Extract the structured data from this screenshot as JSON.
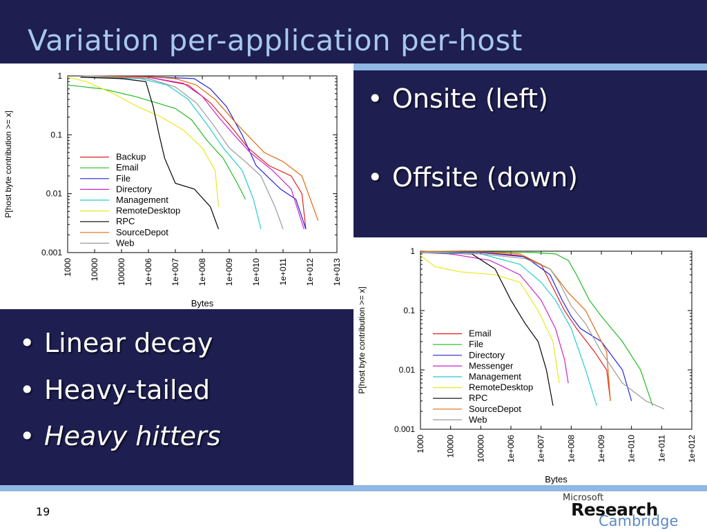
{
  "slide": {
    "title": "Variation per-application per-host",
    "page_number": "19",
    "bullets_right": [
      {
        "text": "Onsite (left)",
        "italic": false
      },
      {
        "text": "Offsite (down)",
        "italic": false
      }
    ],
    "bullets_left": [
      {
        "text": "Linear decay",
        "italic": false
      },
      {
        "text": "Heavy-tailed",
        "italic": false
      },
      {
        "text": "Heavy hitters",
        "italic": true
      }
    ],
    "logo": {
      "line1": "Microsoft",
      "line2": "Research",
      "line3": "Cambridge"
    }
  },
  "chart_data": [
    {
      "type": "line",
      "id": "onsite",
      "xlabel": "Bytes",
      "ylabel": "P[host byte contribution >= x]",
      "xscale": "log",
      "yscale": "log",
      "xlim": [
        1000,
        10000000000000.0
      ],
      "ylim": [
        0.001,
        1
      ],
      "xticks": [
        "1000",
        "10000",
        "100000",
        "1e+006",
        "1e+007",
        "1e+008",
        "1e+009",
        "1e+010",
        "1e+011",
        "1e+012",
        "1e+013"
      ],
      "yticks": [
        "1",
        "0.1",
        "0.01",
        "0.001"
      ],
      "legend": "bottom-left",
      "grid": false,
      "series": [
        {
          "name": "Backup",
          "color": "#e02020",
          "x": [
            3000,
            1000000.0,
            30000000.0,
            200000000.0,
            1000000000.0,
            5000000000.0,
            30000000000.0,
            200000000000.0,
            500000000000.0,
            700000000000.0
          ],
          "y": [
            1,
            0.95,
            0.7,
            0.35,
            0.15,
            0.06,
            0.03,
            0.02,
            0.01,
            0.0025
          ]
        },
        {
          "name": "Email",
          "color": "#22bb22",
          "x": [
            1000,
            20000,
            300000.0,
            2000000.0,
            10000000.0,
            40000000.0,
            150000000.0,
            600000000.0,
            2000000000.0,
            4000000000.0
          ],
          "y": [
            0.7,
            0.6,
            0.45,
            0.35,
            0.28,
            0.18,
            0.08,
            0.04,
            0.015,
            0.008
          ]
        },
        {
          "name": "File",
          "color": "#2222dd",
          "x": [
            3000,
            1000000.0,
            50000000.0,
            200000000.0,
            800000000.0,
            3000000000.0,
            10000000000.0,
            80000000000.0,
            300000000000.0,
            700000000000.0
          ],
          "y": [
            1,
            0.97,
            0.9,
            0.6,
            0.3,
            0.1,
            0.03,
            0.012,
            0.008,
            0.0025
          ]
        },
        {
          "name": "Directory",
          "color": "#cc22cc",
          "x": [
            3000,
            1000000.0,
            20000000.0,
            100000000.0,
            400000000.0,
            1500000000.0,
            6000000000.0,
            40000000000.0,
            200000000000.0,
            600000000000.0
          ],
          "y": [
            1,
            0.95,
            0.75,
            0.45,
            0.2,
            0.1,
            0.05,
            0.025,
            0.012,
            0.0025
          ]
        },
        {
          "name": "Management",
          "color": "#22cccc",
          "x": [
            3000,
            500000.0,
            5000000.0,
            30000000.0,
            150000000.0,
            600000000.0,
            3000000000.0,
            8000000000.0,
            15000000000.0
          ],
          "y": [
            0.95,
            0.9,
            0.7,
            0.4,
            0.15,
            0.06,
            0.025,
            0.008,
            0.0025
          ]
        },
        {
          "name": "RemoteDesktop",
          "color": "#e8e820",
          "x": [
            1000,
            5000,
            50000,
            400000.0,
            3000000.0,
            20000000.0,
            100000000.0,
            300000000.0,
            400000000.0
          ],
          "y": [
            0.95,
            0.8,
            0.5,
            0.3,
            0.2,
            0.12,
            0.06,
            0.025,
            0.006
          ]
        },
        {
          "name": "RPC",
          "color": "#000000",
          "x": [
            3000,
            100000.0,
            800000.0,
            1500000.0,
            2500000.0,
            4000000.0,
            10000000.0,
            50000000.0,
            200000000.0,
            400000000.0
          ],
          "y": [
            0.95,
            0.9,
            0.8,
            0.3,
            0.1,
            0.04,
            0.015,
            0.012,
            0.006,
            0.0025
          ]
        },
        {
          "name": "SourceDepot",
          "color": "#e06a10",
          "x": [
            3000,
            1000000.0,
            10000000.0,
            60000000.0,
            300000000.0,
            2000000000.0,
            20000000000.0,
            100000000000.0,
            500000000000.0,
            2000000000000.0
          ],
          "y": [
            1,
            0.97,
            0.9,
            0.7,
            0.4,
            0.15,
            0.05,
            0.035,
            0.02,
            0.0035
          ]
        },
        {
          "name": "Web",
          "color": "#999999",
          "x": [
            3000,
            1000000.0,
            10000000.0,
            60000000.0,
            250000000.0,
            1000000000.0,
            4000000000.0,
            15000000000.0,
            50000000000.0,
            100000000000.0
          ],
          "y": [
            1,
            0.9,
            0.65,
            0.35,
            0.15,
            0.06,
            0.035,
            0.02,
            0.006,
            0.0025
          ]
        }
      ]
    },
    {
      "type": "line",
      "id": "offsite",
      "xlabel": "Bytes",
      "ylabel": "P[host byte contribution >= x]",
      "xscale": "log",
      "yscale": "log",
      "xlim": [
        1000,
        1000000000000.0
      ],
      "ylim": [
        0.001,
        1
      ],
      "xticks": [
        "1000",
        "10000",
        "100000",
        "1e+006",
        "1e+007",
        "1e+008",
        "1e+009",
        "1e+010",
        "1e+011",
        "1e+012"
      ],
      "yticks": [
        "1",
        "0.1",
        "0.01",
        "0.001"
      ],
      "legend": "bottom-left",
      "grid": false,
      "series": [
        {
          "name": "Email",
          "color": "#e02020",
          "x": [
            1000,
            100000.0,
            2000000.0,
            10000000.0,
            30000000.0,
            60000000.0,
            150000000.0,
            600000000.0,
            1500000000.0,
            2000000000.0
          ],
          "y": [
            1,
            0.95,
            0.85,
            0.6,
            0.2,
            0.1,
            0.05,
            0.02,
            0.01,
            0.003
          ]
        },
        {
          "name": "File",
          "color": "#22bb22",
          "x": [
            1000,
            100000.0,
            5000000.0,
            30000000.0,
            80000000.0,
            150000000.0,
            400000000.0,
            1000000000.0,
            5000000000.0,
            20000000000.0,
            50000000000.0
          ],
          "y": [
            1,
            0.98,
            0.95,
            0.9,
            0.7,
            0.4,
            0.15,
            0.08,
            0.03,
            0.01,
            0.0025
          ]
        },
        {
          "name": "Directory",
          "color": "#2222dd",
          "x": [
            1000,
            100000.0,
            3000000.0,
            20000000.0,
            50000000.0,
            100000000.0,
            200000000.0,
            1000000000.0,
            5000000000.0,
            10000000000.0
          ],
          "y": [
            1,
            0.95,
            0.8,
            0.4,
            0.15,
            0.08,
            0.05,
            0.03,
            0.01,
            0.003
          ]
        },
        {
          "name": "Messenger",
          "color": "#cc22cc",
          "x": [
            1000,
            10000.0,
            200000.0,
            2000000.0,
            10000000.0,
            30000000.0,
            60000000.0,
            80000000.0
          ],
          "y": [
            0.95,
            0.9,
            0.7,
            0.4,
            0.15,
            0.05,
            0.015,
            0.006
          ]
        },
        {
          "name": "Management",
          "color": "#22cccc",
          "x": [
            1000,
            100000.0,
            2000000.0,
            10000000.0,
            30000000.0,
            100000000.0,
            300000000.0,
            700000000.0
          ],
          "y": [
            1,
            0.9,
            0.6,
            0.3,
            0.15,
            0.05,
            0.01,
            0.0025
          ]
        },
        {
          "name": "RemoteDesktop",
          "color": "#e8e820",
          "x": [
            1000,
            3000,
            20000.0,
            300000.0,
            2000000.0,
            8000000.0,
            25000000.0,
            40000000.0
          ],
          "y": [
            0.85,
            0.55,
            0.45,
            0.4,
            0.3,
            0.1,
            0.03,
            0.006
          ]
        },
        {
          "name": "RPC",
          "color": "#000000",
          "x": [
            1000,
            50000.0,
            300000.0,
            1000000.0,
            3000000.0,
            8000000.0,
            15000000.0,
            25000000.0
          ],
          "y": [
            0.95,
            0.9,
            0.5,
            0.15,
            0.06,
            0.03,
            0.01,
            0.0025
          ]
        },
        {
          "name": "SourceDepot",
          "color": "#e06a10",
          "x": [
            1000,
            100000.0,
            2000000.0,
            20000000.0,
            80000000.0,
            300000000.0,
            1500000000.0,
            2000000000.0
          ],
          "y": [
            1,
            0.98,
            0.9,
            0.5,
            0.2,
            0.1,
            0.02,
            0.003
          ]
        },
        {
          "name": "Web",
          "color": "#999999",
          "x": [
            1000,
            100000.0,
            3000000.0,
            20000000.0,
            40000000.0,
            100000000.0,
            300000000.0,
            1000000000.0,
            5000000000.0,
            30000000000.0,
            120000000000.0
          ],
          "y": [
            0.95,
            0.9,
            0.75,
            0.5,
            0.3,
            0.12,
            0.06,
            0.02,
            0.006,
            0.003,
            0.0022
          ]
        }
      ]
    }
  ]
}
